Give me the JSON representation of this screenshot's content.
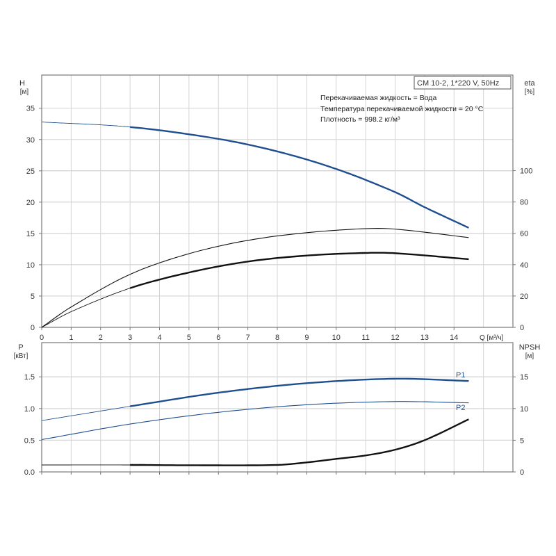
{
  "colors": {
    "blue": "#1f4f8f",
    "black": "#111111",
    "grid": "#d4d4d4",
    "axis": "#777777"
  },
  "chart_data": [
    {
      "type": "line",
      "title": "CM 10-2, 1*220 V, 50Hz",
      "info_lines": [
        "Перекачиваемая жидкость = Вода",
        "Температура перекачиваемой жидкости = 20 °C",
        "Плотность = 998.2 кг/м³"
      ],
      "xlabel": "Q [м³/ч]",
      "ylabel": "H",
      "ylabel_unit": "[м]",
      "y2label": "eta",
      "y2label_unit": "[%]",
      "xlim": [
        0,
        16
      ],
      "ylim": [
        0,
        40.3
      ],
      "y2lim": [
        0,
        161
      ],
      "xticks": [
        "0",
        "1",
        "2",
        "3",
        "4",
        "5",
        "6",
        "7",
        "8",
        "9",
        "10",
        "11",
        "12",
        "13",
        "14"
      ],
      "yticks": [
        "0",
        "5",
        "10",
        "15",
        "20",
        "25",
        "30",
        "35"
      ],
      "y2ticks": [
        "0",
        "20",
        "40",
        "60",
        "80",
        "100"
      ],
      "grid": true,
      "series": [
        {
          "name": "H",
          "axis": "y",
          "color": "blue",
          "x": [
            0,
            3,
            6,
            8,
            10,
            12,
            13,
            14.5
          ],
          "y": [
            32.8,
            32.0,
            30.1,
            28.1,
            25.3,
            21.6,
            19.2,
            15.9
          ],
          "thick_from": 3
        },
        {
          "name": "eta-upper",
          "axis": "y2",
          "color": "black",
          "x": [
            0,
            1,
            3,
            5,
            7,
            9,
            11,
            12,
            14.5
          ],
          "y": [
            0,
            13,
            33.8,
            47,
            55.5,
            60.4,
            63,
            62.7,
            57.3
          ],
          "thick_from": null
        },
        {
          "name": "eta",
          "axis": "y2",
          "color": "black",
          "x": [
            0,
            1,
            3,
            5,
            7,
            9,
            11,
            12,
            14.5
          ],
          "y": [
            0,
            10,
            25,
            35,
            42,
            45.8,
            47.5,
            47.3,
            43.5
          ],
          "thick_from": 3
        }
      ]
    },
    {
      "type": "line",
      "xlim": [
        0,
        16
      ],
      "ylim": [
        0,
        2.04
      ],
      "y2lim": [
        0,
        20.4
      ],
      "ylabel": "P",
      "ylabel_unit": "[кВт]",
      "y2label": "NPSH",
      "y2label_unit": "[м]",
      "yticks": [
        "0.0",
        "0.5",
        "1.0",
        "1.5"
      ],
      "y2ticks": [
        "0",
        "5",
        "10",
        "15"
      ],
      "grid": true,
      "series": [
        {
          "name": "P1",
          "axis": "y",
          "color": "blue",
          "x": [
            0,
            3,
            6,
            9,
            12,
            14.5
          ],
          "y": [
            0.81,
            1.035,
            1.25,
            1.4,
            1.47,
            1.435
          ],
          "thick_from": 3
        },
        {
          "name": "P2",
          "axis": "y",
          "color": "blue",
          "x": [
            0,
            3,
            6,
            9,
            12,
            14.5
          ],
          "y": [
            0.51,
            0.755,
            0.94,
            1.06,
            1.11,
            1.09
          ],
          "thick_from": null
        },
        {
          "name": "NPSH",
          "axis": "y2",
          "color": "black",
          "x": [
            0,
            3,
            5,
            8,
            9,
            10,
            11,
            12,
            13,
            14.5
          ],
          "y": [
            1.1,
            1.1,
            1.05,
            1.1,
            1.5,
            2.05,
            2.6,
            3.5,
            5.0,
            8.3
          ],
          "thick_from": 3
        }
      ]
    }
  ]
}
